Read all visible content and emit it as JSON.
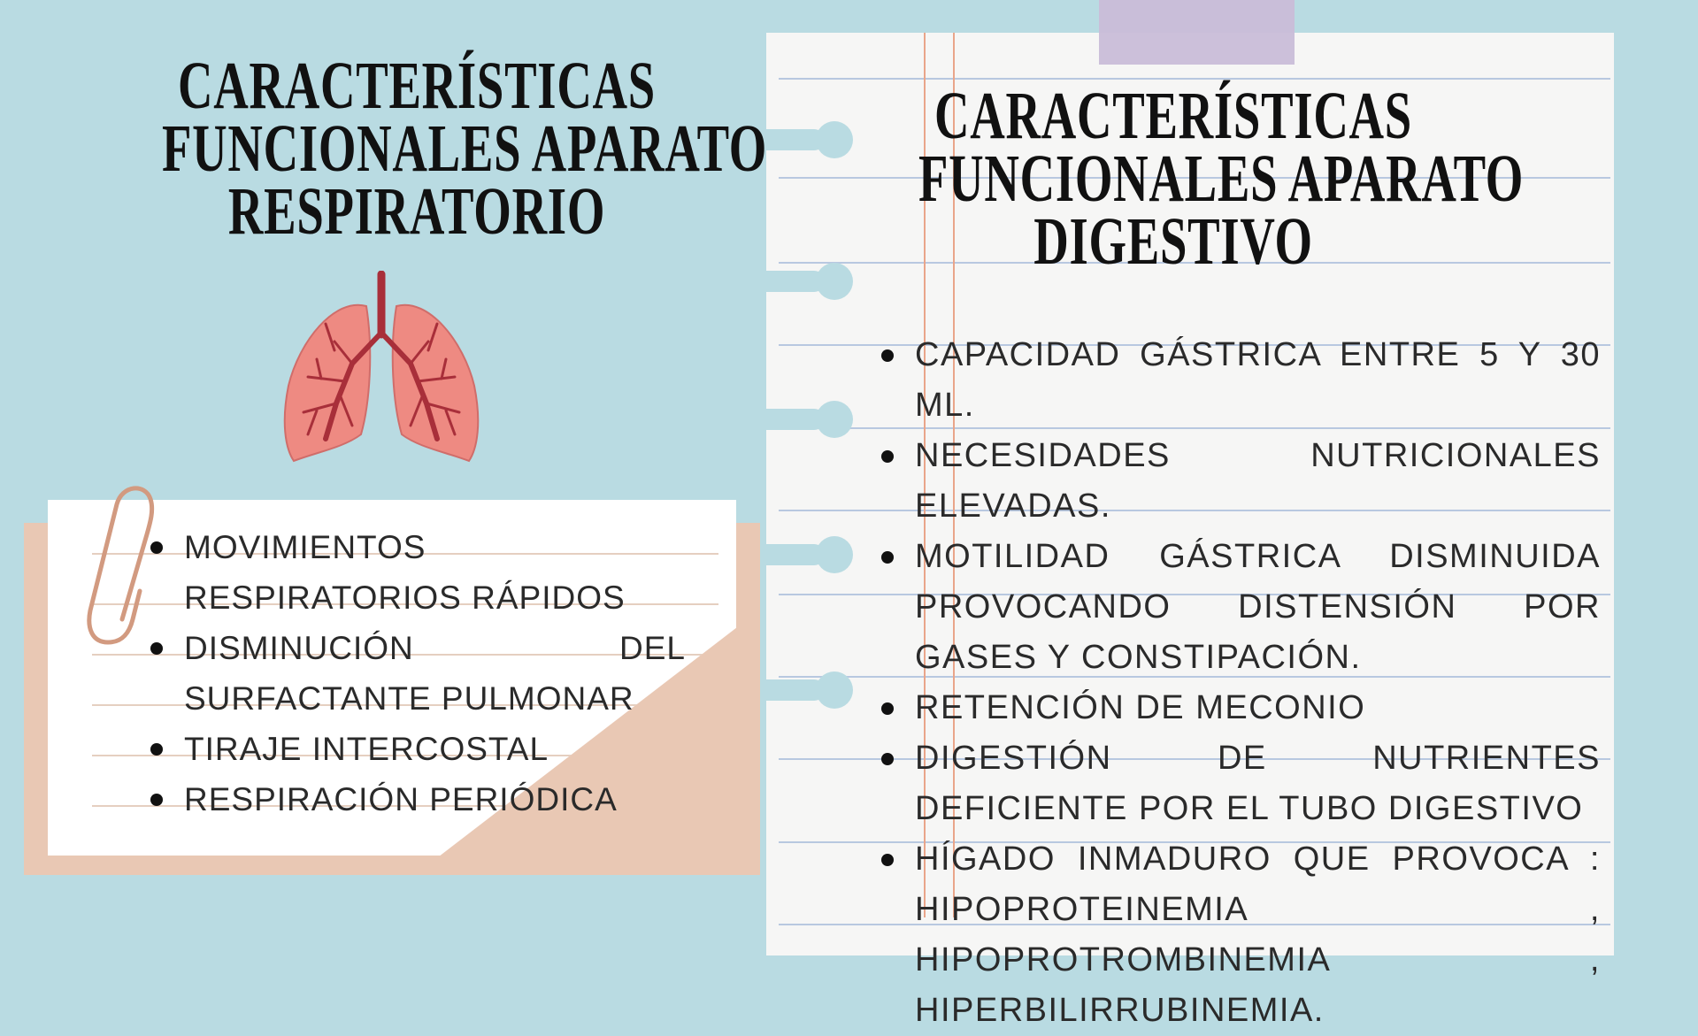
{
  "left_panel": {
    "title_lines": [
      "CARACTERÍSTICAS",
      "FUNCIONALES  APARATO",
      "RESPIRATORIO"
    ],
    "illustration": "lungs-icon",
    "items": [
      "MOVIMIENTOS RESPIRATORIOS RÁPIDOS",
      "DISMINUCIÓN DEL SURFACTANTE PULMONAR",
      "TIRAJE INTERCOSTAL",
      "RESPIRACIÓN PERIÓDICA"
    ]
  },
  "right_panel": {
    "title_lines": [
      "CARACTERÍSTICAS",
      "FUNCIONALES  APARATO",
      "DIGESTIVO"
    ],
    "items": [
      "CAPACIDAD GÁSTRICA ENTRE 5 Y 30 ML.",
      "NECESIDADES NUTRICIONALES ELEVADAS.",
      "MOTILIDAD GÁSTRICA DISMINUIDA PROVOCANDO DISTENSIÓN POR GASES Y CONSTIPACIÓN.",
      "RETENCIÓN DE MECONIO",
      "DIGESTIÓN DE NUTRIENTES DEFICIENTE POR EL TUBO DIGESTIVO",
      "HÍGADO INMADURO QUE PROVOCA : HIPOPROTEINEMIA , HIPOPROTROMBINEMIA , HIPERBILIRRUBINEMIA."
    ]
  },
  "colors": {
    "background": "#b9dbe2",
    "paper": "#f6f6f5",
    "tape": "#c9bdd8",
    "card_back": "#e9c8b4",
    "lung": "#ee8a82",
    "lung_vessels": "#a82f3a"
  }
}
